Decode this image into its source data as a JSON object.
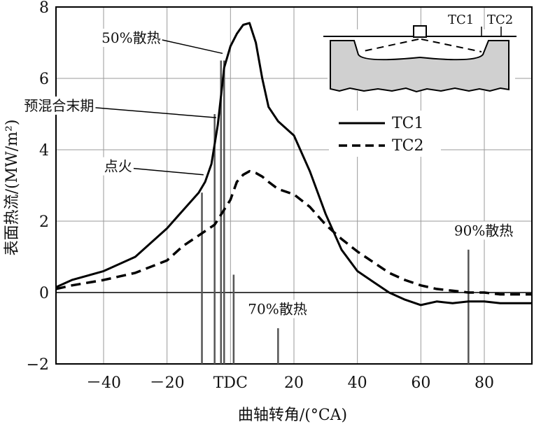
{
  "chart_data": {
    "type": "line",
    "title": "",
    "xlabel": "曲轴转角/(°CA)",
    "ylabel": "表面热流/(MW/m²)",
    "xlim": [
      -55,
      95
    ],
    "ylim": [
      -2,
      8
    ],
    "xticks": [
      {
        "value": -40,
        "label": "－40"
      },
      {
        "value": -20,
        "label": "－20"
      },
      {
        "value": 0,
        "label": "TDC"
      },
      {
        "value": 20,
        "label": "20"
      },
      {
        "value": 40,
        "label": "40"
      },
      {
        "value": 60,
        "label": "60"
      },
      {
        "value": 80,
        "label": "80"
      }
    ],
    "yticks": [
      {
        "value": -2,
        "label": "−2"
      },
      {
        "value": 0,
        "label": "0"
      },
      {
        "value": 2,
        "label": "2"
      },
      {
        "value": 4,
        "label": "4"
      },
      {
        "value": 6,
        "label": "6"
      },
      {
        "value": 8,
        "label": "8"
      }
    ],
    "grid": true,
    "legend": {
      "position": "top-right",
      "entries": [
        {
          "name": "TC1",
          "style": "solid"
        },
        {
          "name": "TC2",
          "style": "dashed"
        }
      ]
    },
    "series": [
      {
        "name": "TC1",
        "style": "solid",
        "color": "#000000",
        "x": [
          -55,
          -50,
          -40,
          -30,
          -20,
          -15,
          -10,
          -8,
          -6,
          -4,
          -2,
          0,
          2,
          4,
          6,
          8,
          10,
          12,
          15,
          20,
          25,
          30,
          35,
          40,
          45,
          50,
          55,
          60,
          65,
          70,
          75,
          80,
          85,
          90,
          95
        ],
        "y": [
          0.15,
          0.35,
          0.6,
          1.0,
          1.8,
          2.3,
          2.8,
          3.1,
          3.6,
          4.7,
          6.3,
          6.9,
          7.25,
          7.5,
          7.55,
          7.0,
          6.0,
          5.2,
          4.8,
          4.4,
          3.4,
          2.2,
          1.2,
          0.6,
          0.3,
          0.0,
          -0.2,
          -0.35,
          -0.25,
          -0.3,
          -0.25,
          -0.25,
          -0.3,
          -0.3,
          -0.3
        ]
      },
      {
        "name": "TC2",
        "style": "dashed",
        "color": "#000000",
        "x": [
          -55,
          -50,
          -40,
          -30,
          -20,
          -15,
          -10,
          -5,
          0,
          2,
          4,
          6,
          8,
          10,
          12,
          15,
          20,
          25,
          30,
          35,
          40,
          45,
          50,
          55,
          60,
          65,
          70,
          75,
          80,
          85,
          90,
          95
        ],
        "y": [
          0.1,
          0.2,
          0.35,
          0.55,
          0.9,
          1.3,
          1.6,
          1.9,
          2.6,
          3.1,
          3.3,
          3.4,
          3.35,
          3.25,
          3.1,
          2.9,
          2.75,
          2.4,
          1.9,
          1.5,
          1.15,
          0.85,
          0.55,
          0.35,
          0.2,
          0.1,
          0.05,
          0.0,
          0.0,
          -0.05,
          -0.05,
          -0.05
        ]
      }
    ],
    "markers": [
      {
        "x": -9,
        "y1": -2,
        "y2": 2.8
      },
      {
        "x": -5,
        "y1": -2,
        "y2": 5.0
      },
      {
        "x": -3,
        "y1": -2,
        "y2": 6.5
      },
      {
        "x": -2,
        "y1": -2,
        "y2": 6.5
      },
      {
        "x": 1,
        "y1": -2,
        "y2": 0.5
      },
      {
        "x": 15,
        "y1": -2,
        "y2": -1.0
      },
      {
        "x": 75,
        "y1": -2,
        "y2": 1.2
      }
    ],
    "annotations": [
      {
        "text": "50%散热",
        "x": -22,
        "y": 7.0,
        "tip_x": -2.5,
        "tip_y": 6.7
      },
      {
        "text": "预混合末期",
        "x": -43,
        "y": 5.1,
        "tip_x": -4.5,
        "tip_y": 4.9
      },
      {
        "text": "点火",
        "x": -31,
        "y": 3.4,
        "tip_x": -8.5,
        "tip_y": 3.3
      },
      {
        "text": "70%散热",
        "x": 5.5,
        "y": -0.6
      },
      {
        "text": "90%散热",
        "x": 70.5,
        "y": 1.6
      }
    ],
    "inset": {
      "labels": [
        "TC1",
        "TC2"
      ]
    }
  }
}
